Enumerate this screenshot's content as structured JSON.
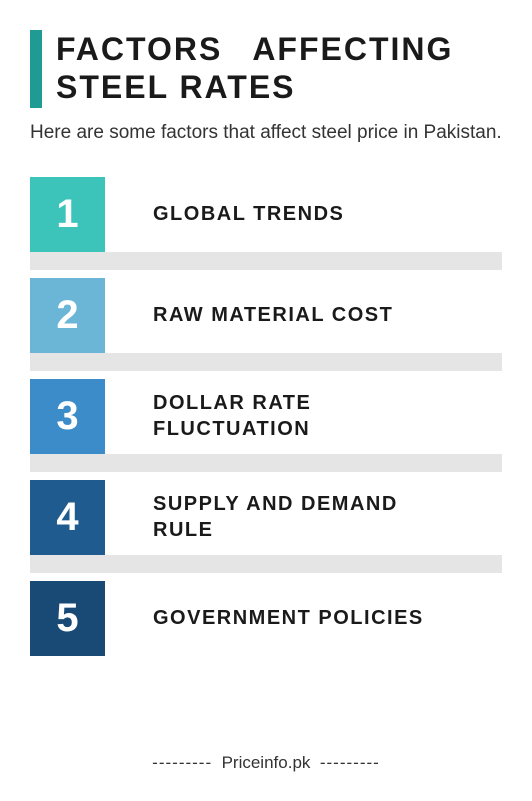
{
  "header": {
    "accent_color": "#1f9b94",
    "title_line1": "FACTORS",
    "title_line2": "AFFECTING",
    "title_line3": "STEEL RATES",
    "subtitle": "Here are some factors that affect steel price in Pakistan."
  },
  "items": [
    {
      "num": "1",
      "label": "GLOBAL TRENDS",
      "color": "#3cc4bb"
    },
    {
      "num": "2",
      "label": "RAW MATERIAL COST",
      "color": "#6bb6d6"
    },
    {
      "num": "3",
      "label": "DOLLAR RATE FLUCTUATION",
      "color": "#3b8cc9"
    },
    {
      "num": "4",
      "label": "SUPPLY AND DEMAND RULE",
      "color": "#1f5b8f"
    },
    {
      "num": "5",
      "label": "GOVERNMENT POLICIES",
      "color": "#184a75"
    }
  ],
  "spacer_color": "#e5e5e5",
  "footer": {
    "dash": "---------",
    "text": "Priceinfo.pk"
  }
}
